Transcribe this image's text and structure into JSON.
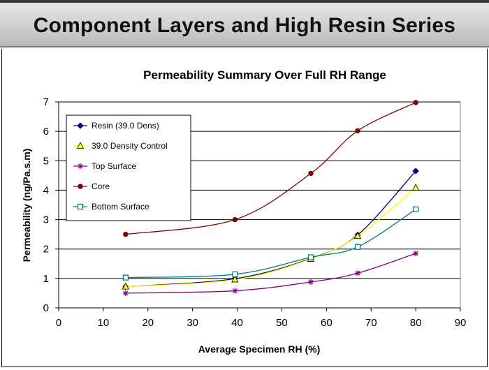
{
  "slide": {
    "title": "Component Layers and High Resin Series"
  },
  "chart_data": {
    "type": "line",
    "title": "Permeability Summary Over Full RH Range",
    "xlabel": "Average Specimen RH (%)",
    "ylabel": "Permeability (ng/Pa.s.m)",
    "xlim": [
      0,
      90
    ],
    "ylim": [
      0,
      7
    ],
    "xticks": [
      0,
      10,
      20,
      30,
      40,
      50,
      60,
      70,
      80,
      90
    ],
    "yticks": [
      0,
      1,
      2,
      3,
      4,
      5,
      6,
      7
    ],
    "grid": "horizontal",
    "legend_position": "top-left",
    "series": [
      {
        "name": "Resin (39.0 Dens)",
        "color": "#000080",
        "marker": "diamond",
        "x": [
          15,
          39.5,
          56.5,
          67,
          80
        ],
        "y": [
          0.72,
          0.99,
          1.68,
          2.48,
          4.65
        ]
      },
      {
        "name": "39.0 Density Control",
        "color": "#ffff00",
        "marker": "triangle",
        "x": [
          15,
          39.5,
          56.5,
          67,
          80
        ],
        "y": [
          0.72,
          0.96,
          1.66,
          2.44,
          4.08
        ]
      },
      {
        "name": "Top Surface",
        "color": "#800080",
        "marker": "star",
        "x": [
          15,
          39.5,
          56.5,
          67,
          80
        ],
        "y": [
          0.5,
          0.58,
          0.88,
          1.18,
          1.85
        ]
      },
      {
        "name": "Core",
        "color": "#800000",
        "marker": "circle",
        "x": [
          15,
          39.5,
          56.5,
          67,
          80
        ],
        "y": [
          2.5,
          3.0,
          4.57,
          6.02,
          6.98
        ]
      },
      {
        "name": "Bottom Surface",
        "color": "#008080",
        "marker": "square",
        "x": [
          15,
          39.5,
          56.5,
          67,
          80
        ],
        "y": [
          1.03,
          1.14,
          1.72,
          2.07,
          3.35
        ]
      }
    ]
  }
}
